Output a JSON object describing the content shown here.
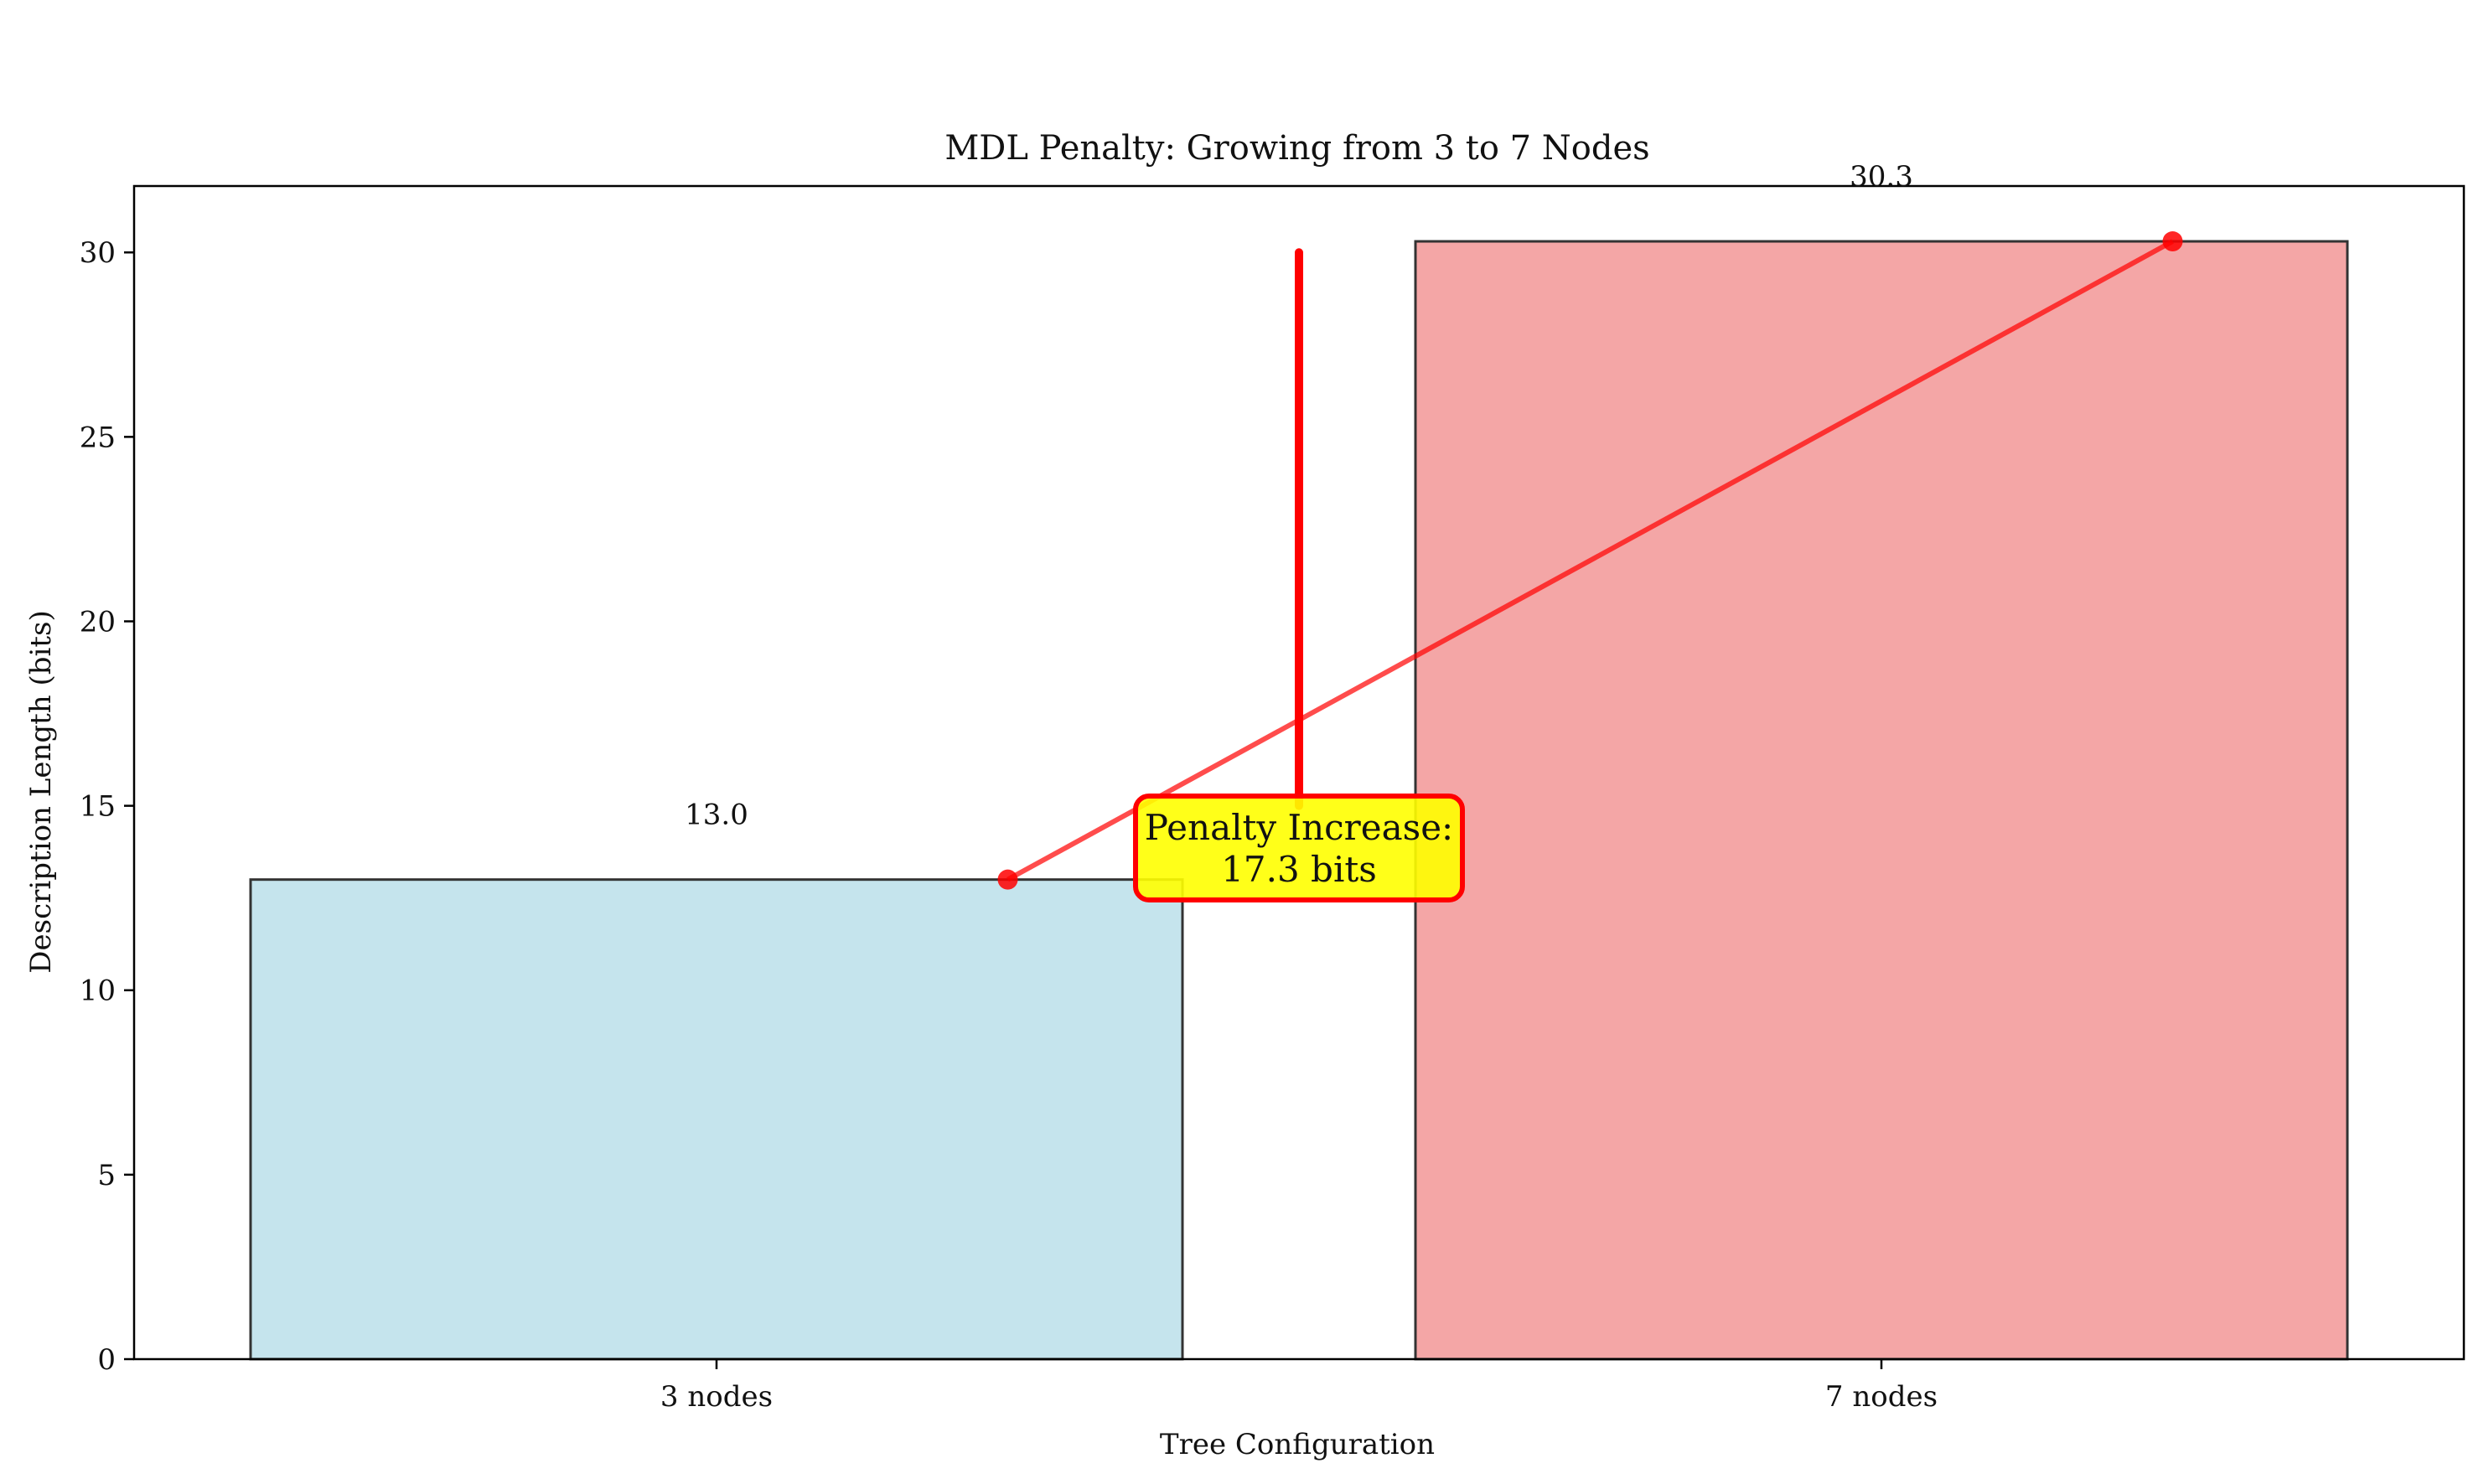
{
  "chart_data": {
    "type": "bar",
    "title": "MDL Penalty: Growing from 3 to 7 Nodes",
    "xlabel": "Tree Configuration",
    "ylabel": "Description Length (bits)",
    "categories": [
      "3 nodes",
      "7 nodes"
    ],
    "values": [
      13.0,
      30.3
    ],
    "value_labels": [
      "13.0",
      "30.3"
    ],
    "bar_colors": [
      "#add8e6",
      "#f08080"
    ],
    "bar_edge_color": "#333333",
    "ylim": [
      0,
      31.8
    ],
    "yticks": [
      0,
      5,
      10,
      15,
      20,
      25,
      30
    ],
    "ytick_labels": [
      "0",
      "5",
      "10",
      "15",
      "20",
      "25",
      "30"
    ],
    "grid": false,
    "legend": "none",
    "annotation": {
      "text_line1": "Penalty Increase:",
      "text_line2": "17.3 bits",
      "box_color": "#ffff00",
      "edge_color": "#ff0000",
      "arrow_from_y": 15.0,
      "arrow_to_y": 30.0
    },
    "connector": {
      "from": {
        "x": 0.25,
        "y": 13.0
      },
      "to": {
        "x": 1.25,
        "y": 30.3
      },
      "color": "#ff0000"
    }
  }
}
